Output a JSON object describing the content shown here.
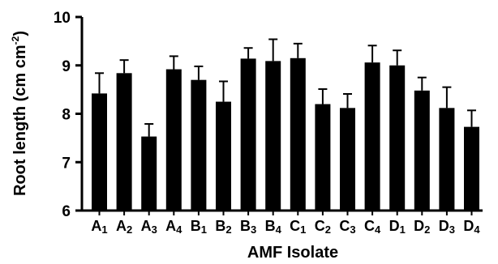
{
  "chart_data": {
    "type": "bar",
    "xlabel": "AMF Isolate",
    "ylabel": {
      "prefix": "Root length (cm cm",
      "superscript": "-2",
      "suffix": ")"
    },
    "ylim": [
      6,
      10
    ],
    "yticks": [
      "6",
      "7",
      "8",
      "9",
      "10"
    ],
    "categories": [
      {
        "letter": "A",
        "sub": "1"
      },
      {
        "letter": "A",
        "sub": "2"
      },
      {
        "letter": "A",
        "sub": "3"
      },
      {
        "letter": "A",
        "sub": "4"
      },
      {
        "letter": "B",
        "sub": "1"
      },
      {
        "letter": "B",
        "sub": "2"
      },
      {
        "letter": "B",
        "sub": "3"
      },
      {
        "letter": "B",
        "sub": "4"
      },
      {
        "letter": "C",
        "sub": "1"
      },
      {
        "letter": "C",
        "sub": "2"
      },
      {
        "letter": "C",
        "sub": "3"
      },
      {
        "letter": "C",
        "sub": "4"
      },
      {
        "letter": "D",
        "sub": "1"
      },
      {
        "letter": "D",
        "sub": "2"
      },
      {
        "letter": "D",
        "sub": "3"
      },
      {
        "letter": "D",
        "sub": "4"
      }
    ],
    "values": [
      8.42,
      8.84,
      7.53,
      8.92,
      8.7,
      8.25,
      9.14,
      9.09,
      9.15,
      8.2,
      8.12,
      9.06,
      9.0,
      8.48,
      8.12,
      7.73
    ],
    "errors": [
      0.42,
      0.27,
      0.26,
      0.27,
      0.28,
      0.42,
      0.22,
      0.45,
      0.3,
      0.31,
      0.29,
      0.35,
      0.31,
      0.27,
      0.43,
      0.34
    ],
    "bar_color": "#000000",
    "grid": false
  }
}
